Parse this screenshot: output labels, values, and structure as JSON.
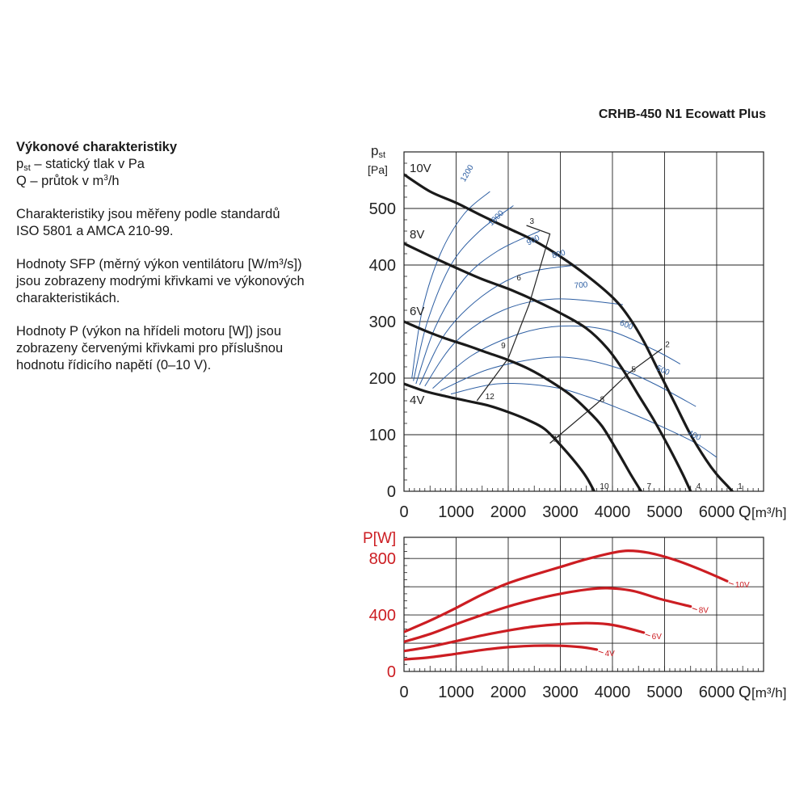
{
  "title": "CRHB-450 N1 Ecowatt Plus",
  "description": {
    "heading": "Výkonové charakteristiky",
    "pst_symbol": "p",
    "pst_subscript": "st",
    "pst_text": " – statický tlak v Pa",
    "q_text_pre": "Q – průtok v m",
    "q_text_sup": "3",
    "q_text_post": "/h",
    "para1_line1": "Charakteristiky jsou měřeny podle standardů",
    "para1_line2": "ISO 5801 a AMCA 210-99.",
    "para2_line1": "Hodnoty SFP (měrný výkon ventilátoru [W/m³/s])",
    "para2_line2": "jsou zobrazeny modrými křivkami ve výkonových",
    "para2_line3": "charakteristikách.",
    "para3_line1": "Hodnoty P (výkon na hřídeli motoru [W]) jsou",
    "para3_line2": "zobrazeny červenými křivkami pro příslušnou",
    "para3_line3": "hodnotu řídicího napětí (0–10 V)."
  },
  "chart_data": [
    {
      "type": "line",
      "ylabel_main": "p",
      "ylabel_sub": "st",
      "yunit": "[Pa]",
      "xlabel": "Q",
      "xunit": "[m³/h]",
      "xlim": [
        0,
        6900
      ],
      "ylim": [
        0,
        600
      ],
      "xticks": [
        "0",
        "1000",
        "2000",
        "3000",
        "4000",
        "5000",
        "6000"
      ],
      "yticks": [
        "0",
        "100",
        "200",
        "300",
        "400",
        "500"
      ],
      "grid": true,
      "series": [
        {
          "name": "10V",
          "color": "#1a1a1a",
          "points": [
            [
              0,
              560
            ],
            [
              500,
              530
            ],
            [
              1000,
              510
            ],
            [
              1500,
              487
            ],
            [
              2000,
              465
            ],
            [
              2500,
              443
            ],
            [
              3000,
              415
            ],
            [
              3500,
              382
            ],
            [
              4000,
              343
            ],
            [
              4300,
              310
            ],
            [
              4600,
              265
            ],
            [
              4900,
              210
            ],
            [
              5200,
              155
            ],
            [
              5500,
              100
            ],
            [
              5800,
              55
            ],
            [
              6000,
              30
            ],
            [
              6200,
              10
            ],
            [
              6300,
              0
            ]
          ]
        },
        {
          "name": "8V",
          "color": "#1a1a1a",
          "points": [
            [
              0,
              438
            ],
            [
              500,
              416
            ],
            [
              1000,
              395
            ],
            [
              1500,
              375
            ],
            [
              2000,
              358
            ],
            [
              2500,
              338
            ],
            [
              3000,
              315
            ],
            [
              3500,
              288
            ],
            [
              3900,
              253
            ],
            [
              4200,
              215
            ],
            [
              4500,
              170
            ],
            [
              4800,
              125
            ],
            [
              5100,
              75
            ],
            [
              5350,
              30
            ],
            [
              5500,
              0
            ]
          ]
        },
        {
          "name": "6V",
          "color": "#1a1a1a",
          "points": [
            [
              0,
              300
            ],
            [
              400,
              284
            ],
            [
              800,
              270
            ],
            [
              1200,
              258
            ],
            [
              1600,
              245
            ],
            [
              2000,
              232
            ],
            [
              2400,
              216
            ],
            [
              2800,
              195
            ],
            [
              3200,
              170
            ],
            [
              3500,
              145
            ],
            [
              3800,
              115
            ],
            [
              4100,
              70
            ],
            [
              4350,
              30
            ],
            [
              4550,
              0
            ]
          ]
        },
        {
          "name": "4V",
          "color": "#1a1a1a",
          "points": [
            [
              0,
              190
            ],
            [
              400,
              177
            ],
            [
              800,
              168
            ],
            [
              1200,
              160
            ],
            [
              1600,
              152
            ],
            [
              2000,
              140
            ],
            [
              2400,
              125
            ],
            [
              2700,
              110
            ],
            [
              3000,
              82
            ],
            [
              3300,
              50
            ],
            [
              3500,
              25
            ],
            [
              3650,
              0
            ]
          ]
        }
      ],
      "sfp_curves": [
        {
          "label": "1200",
          "color": "#2e5fa3",
          "points": [
            [
              150,
              200
            ],
            [
              350,
              320
            ],
            [
              700,
              420
            ],
            [
              1150,
              490
            ],
            [
              1650,
              530
            ]
          ]
        },
        {
          "label": "1000",
          "color": "#2e5fa3",
          "points": [
            [
              180,
              195
            ],
            [
              450,
              300
            ],
            [
              900,
              400
            ],
            [
              1450,
              460
            ],
            [
              2100,
              505
            ]
          ]
        },
        {
          "label": "900",
          "color": "#2e5fa3",
          "points": [
            [
              230,
              190
            ],
            [
              600,
              290
            ],
            [
              1150,
              375
            ],
            [
              1800,
              425
            ],
            [
              2600,
              460
            ]
          ]
        },
        {
          "label": "800",
          "color": "#2e5fa3",
          "points": [
            [
              300,
              188
            ],
            [
              800,
              280
            ],
            [
              1500,
              345
            ],
            [
              2300,
              385
            ],
            [
              3300,
              400
            ]
          ]
        },
        {
          "label": "700",
          "color": "#2e5fa3",
          "points": [
            [
              400,
              186
            ],
            [
              1000,
              265
            ],
            [
              1900,
              320
            ],
            [
              2900,
              340
            ],
            [
              4200,
              330
            ]
          ]
        },
        {
          "label": "600",
          "color": "#2e5fa3",
          "points": [
            [
              550,
              182
            ],
            [
              1300,
              240
            ],
            [
              2200,
              278
            ],
            [
              3000,
              292
            ],
            [
              3900,
              285
            ],
            [
              4800,
              250
            ],
            [
              5300,
              225
            ]
          ]
        },
        {
          "label": "500",
          "color": "#2e5fa3",
          "points": [
            [
              700,
              178
            ],
            [
              1600,
              215
            ],
            [
              2600,
              235
            ],
            [
              3300,
              235
            ],
            [
              4100,
              218
            ],
            [
              4800,
              190
            ],
            [
              5600,
              150
            ]
          ]
        },
        {
          "label": "400",
          "color": "#2e5fa3",
          "points": [
            [
              900,
              172
            ],
            [
              1800,
              190
            ],
            [
              2800,
              185
            ],
            [
              3500,
              168
            ],
            [
              4300,
              140
            ],
            [
              5000,
              112
            ],
            [
              5600,
              85
            ],
            [
              6000,
              60
            ]
          ]
        }
      ],
      "op_lines": [
        {
          "points": [
            [
              1400,
              160
            ],
            [
              2000,
              235
            ],
            [
              2400,
              330
            ],
            [
              2800,
              455
            ],
            [
              2350,
              470
            ]
          ],
          "labels": [
            {
              "text": "3",
              "at": [
                2350,
                470
              ]
            },
            {
              "text": "6",
              "at": [
                2100,
                370
              ]
            },
            {
              "text": "9",
              "at": [
                1800,
                250
              ]
            },
            {
              "text": "12",
              "at": [
                1500,
                160
              ]
            }
          ]
        },
        {
          "points": [
            [
              2800,
              85
            ],
            [
              3700,
              155
            ],
            [
              4300,
              208
            ],
            [
              4950,
              252
            ]
          ],
          "labels": [
            {
              "text": "2",
              "at": [
                4950,
                252
              ]
            },
            {
              "text": "5",
              "at": [
                4300,
                208
              ]
            },
            {
              "text": "8",
              "at": [
                3700,
                155
              ]
            },
            {
              "text": "11",
              "at": [
                2800,
                85
              ]
            }
          ]
        }
      ],
      "point_labels": [
        {
          "text": "1",
          "at": [
            6300,
            0
          ]
        },
        {
          "text": "4",
          "at": [
            5500,
            0
          ]
        },
        {
          "text": "7",
          "at": [
            4550,
            0
          ]
        },
        {
          "text": "10",
          "at": [
            3650,
            0
          ]
        }
      ]
    },
    {
      "type": "line",
      "ylabel": "P[W]",
      "xlabel": "Q",
      "xunit": "[m³/h]",
      "xlim": [
        0,
        6900
      ],
      "ylim": [
        0,
        950
      ],
      "xticks": [
        "0",
        "1000",
        "2000",
        "3000",
        "4000",
        "5000",
        "6000"
      ],
      "yticks": [
        "0",
        "400",
        "800"
      ],
      "grid": true,
      "series": [
        {
          "name": "10V",
          "color": "#cc1d22",
          "points": [
            [
              0,
              280
            ],
            [
              500,
              360
            ],
            [
              1000,
              450
            ],
            [
              1500,
              545
            ],
            [
              2000,
              625
            ],
            [
              2500,
              685
            ],
            [
              3000,
              740
            ],
            [
              3500,
              795
            ],
            [
              4000,
              840
            ],
            [
              4300,
              855
            ],
            [
              4700,
              840
            ],
            [
              5200,
              790
            ],
            [
              5700,
              720
            ],
            [
              6200,
              640
            ]
          ]
        },
        {
          "name": "8V",
          "color": "#cc1d22",
          "points": [
            [
              0,
              210
            ],
            [
              500,
              265
            ],
            [
              1000,
              335
            ],
            [
              1500,
              400
            ],
            [
              2000,
              460
            ],
            [
              2500,
              510
            ],
            [
              3000,
              550
            ],
            [
              3500,
              580
            ],
            [
              3900,
              590
            ],
            [
              4400,
              570
            ],
            [
              4900,
              515
            ],
            [
              5500,
              460
            ]
          ]
        },
        {
          "name": "6V",
          "color": "#cc1d22",
          "points": [
            [
              0,
              145
            ],
            [
              500,
              175
            ],
            [
              1000,
              215
            ],
            [
              1500,
              255
            ],
            [
              2000,
              290
            ],
            [
              2500,
              318
            ],
            [
              3000,
              335
            ],
            [
              3500,
              342
            ],
            [
              3900,
              335
            ],
            [
              4250,
              310
            ],
            [
              4600,
              275
            ]
          ]
        },
        {
          "name": "4V",
          "color": "#cc1d22",
          "points": [
            [
              0,
              85
            ],
            [
              500,
              100
            ],
            [
              1000,
              125
            ],
            [
              1500,
              152
            ],
            [
              2000,
              172
            ],
            [
              2500,
              182
            ],
            [
              3000,
              182
            ],
            [
              3400,
              172
            ],
            [
              3700,
              155
            ]
          ]
        }
      ]
    }
  ]
}
